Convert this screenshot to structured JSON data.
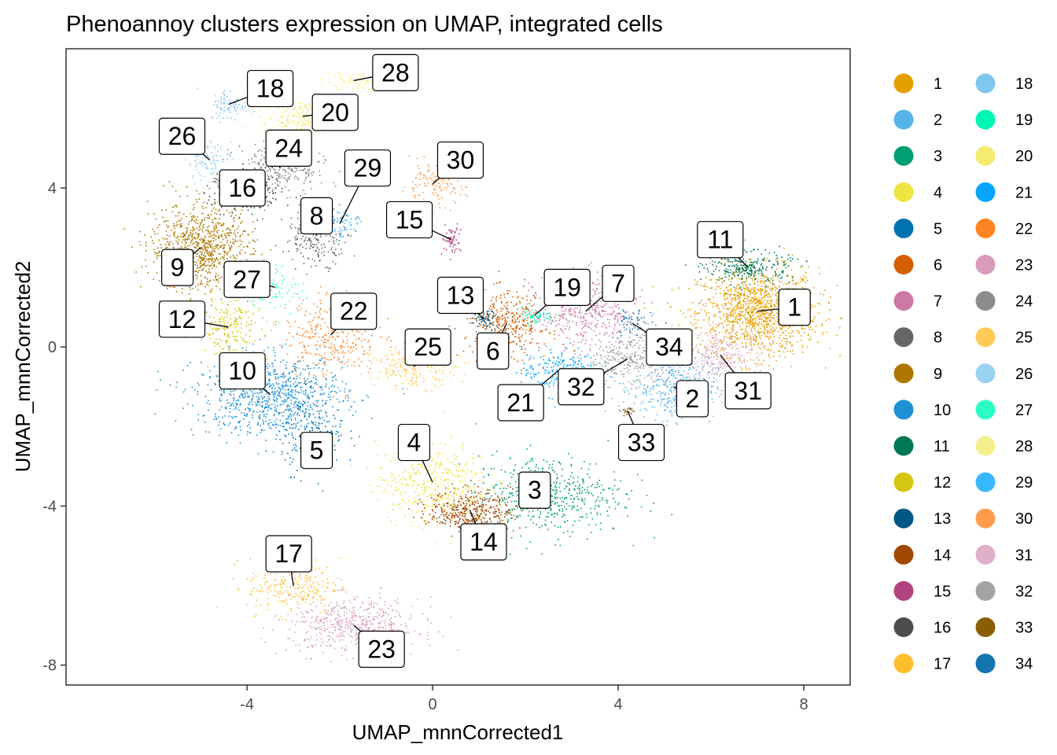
{
  "chart_data": {
    "type": "scatter",
    "title": "Phenoannoy clusters expression on UMAP, integrated cells",
    "xlabel": "UMAP_mnnCorrected1",
    "ylabel": "UMAP_mnnCorrected2",
    "xlim": [
      -7.9,
      9.0
    ],
    "ylim": [
      -8.5,
      7.5
    ],
    "xticks": [
      -4,
      0,
      4,
      8
    ],
    "yticks": [
      -8,
      -4,
      0,
      4
    ],
    "xtick_labels": [
      "-4",
      "0",
      "4",
      "8"
    ],
    "ytick_labels": [
      "-8",
      "-4",
      "0",
      "4"
    ],
    "grid": false,
    "legend_position": "right",
    "clusters": [
      {
        "id": 1,
        "label": "1",
        "color": "#E69F00",
        "center": [
          7.0,
          0.9
        ],
        "label_pos": [
          7.8,
          1.0
        ],
        "spread": [
          0.65,
          0.55
        ],
        "n": 1300
      },
      {
        "id": 2,
        "label": "2",
        "color": "#56B4E9",
        "center": [
          5.2,
          -1.0
        ],
        "label_pos": [
          5.6,
          -1.3
        ],
        "spread": [
          0.45,
          0.4
        ],
        "n": 380
      },
      {
        "id": 3,
        "label": "3",
        "color": "#009E73",
        "center": [
          2.5,
          -3.7
        ],
        "label_pos": [
          2.2,
          -3.6
        ],
        "spread": [
          0.8,
          0.5
        ],
        "n": 520
      },
      {
        "id": 4,
        "label": "4",
        "color": "#F0E442",
        "center": [
          0.0,
          -3.4
        ],
        "label_pos": [
          -0.4,
          -2.4
        ],
        "spread": [
          0.6,
          0.5
        ],
        "n": 420
      },
      {
        "id": 5,
        "label": "5",
        "color": "#0072B2",
        "center": [
          -2.6,
          -2.2
        ],
        "label_pos": [
          -2.5,
          -2.6
        ],
        "spread": [
          0.35,
          0.45
        ],
        "n": 180
      },
      {
        "id": 6,
        "label": "6",
        "color": "#D55E00",
        "center": [
          1.6,
          0.6
        ],
        "label_pos": [
          1.3,
          -0.1
        ],
        "spread": [
          0.45,
          0.4
        ],
        "n": 360
      },
      {
        "id": 7,
        "label": "7",
        "color": "#CC79A7",
        "center": [
          3.3,
          0.9
        ],
        "label_pos": [
          4.0,
          1.6
        ],
        "spread": [
          0.55,
          0.45
        ],
        "n": 420
      },
      {
        "id": 8,
        "label": "8",
        "color": "#666666",
        "center": [
          -2.5,
          2.8
        ],
        "label_pos": [
          -2.5,
          3.3
        ],
        "spread": [
          0.35,
          0.35
        ],
        "n": 220
      },
      {
        "id": 9,
        "label": "9",
        "color": "#AD7700",
        "center": [
          -5.0,
          2.5
        ],
        "label_pos": [
          -5.5,
          2.0
        ],
        "spread": [
          0.55,
          0.55
        ],
        "n": 900
      },
      {
        "id": 10,
        "label": "10",
        "color": "#1C91D4",
        "center": [
          -3.5,
          -1.2
        ],
        "label_pos": [
          -4.1,
          -0.6
        ],
        "spread": [
          0.8,
          0.5
        ],
        "n": 900
      },
      {
        "id": 11,
        "label": "11",
        "color": "#007756",
        "center": [
          6.8,
          2.0
        ],
        "label_pos": [
          6.2,
          2.7
        ],
        "spread": [
          0.45,
          0.2
        ],
        "n": 260
      },
      {
        "id": 12,
        "label": "12",
        "color": "#D5C711",
        "center": [
          -4.4,
          0.5
        ],
        "label_pos": [
          -5.4,
          0.7
        ],
        "spread": [
          0.35,
          0.35
        ],
        "n": 200
      },
      {
        "id": 13,
        "label": "13",
        "color": "#005685",
        "center": [
          1.1,
          0.7
        ],
        "label_pos": [
          0.6,
          1.3
        ],
        "spread": [
          0.15,
          0.12
        ],
        "n": 60
      },
      {
        "id": 14,
        "label": "14",
        "color": "#A04700",
        "center": [
          0.8,
          -4.1
        ],
        "label_pos": [
          1.1,
          -4.9
        ],
        "spread": [
          0.45,
          0.25
        ],
        "n": 380
      },
      {
        "id": 15,
        "label": "15",
        "color": "#B14380",
        "center": [
          0.4,
          2.7
        ],
        "label_pos": [
          -0.5,
          3.2
        ],
        "spread": [
          0.1,
          0.2
        ],
        "n": 60
      },
      {
        "id": 16,
        "label": "16",
        "color": "#4D4D4D",
        "center": [
          -4.0,
          3.9
        ],
        "label_pos": [
          -4.1,
          4.0
        ],
        "spread": [
          0.4,
          0.3
        ],
        "n": 220
      },
      {
        "id": 17,
        "label": "17",
        "color": "#FFBE2D",
        "center": [
          -3.0,
          -6.0
        ],
        "label_pos": [
          -3.1,
          -5.2
        ],
        "spread": [
          0.5,
          0.35
        ],
        "n": 240
      },
      {
        "id": 18,
        "label": "18",
        "color": "#80C7EF",
        "center": [
          -4.4,
          6.1
        ],
        "label_pos": [
          -3.5,
          6.5
        ],
        "spread": [
          0.2,
          0.2
        ],
        "n": 80
      },
      {
        "id": 19,
        "label": "19",
        "color": "#00F6B3",
        "center": [
          2.2,
          0.8
        ],
        "label_pos": [
          2.9,
          1.5
        ],
        "spread": [
          0.2,
          0.1
        ],
        "n": 60
      },
      {
        "id": 20,
        "label": "20",
        "color": "#F4EB71",
        "center": [
          -2.8,
          5.8
        ],
        "label_pos": [
          -2.1,
          5.9
        ],
        "spread": [
          0.45,
          0.2
        ],
        "n": 220
      },
      {
        "id": 21,
        "label": "21",
        "color": "#06A5FF",
        "center": [
          2.7,
          -0.6
        ],
        "label_pos": [
          1.9,
          -1.4
        ],
        "spread": [
          0.4,
          0.3
        ],
        "n": 240
      },
      {
        "id": 22,
        "label": "22",
        "color": "#FF8320",
        "center": [
          -2.2,
          0.3
        ],
        "label_pos": [
          -1.7,
          0.9
        ],
        "spread": [
          0.5,
          0.5
        ],
        "n": 320
      },
      {
        "id": 23,
        "label": "23",
        "color": "#D99BBD",
        "center": [
          -1.7,
          -7.0
        ],
        "label_pos": [
          -1.1,
          -7.6
        ],
        "spread": [
          0.7,
          0.35
        ],
        "n": 520
      },
      {
        "id": 24,
        "label": "24",
        "color": "#8C8C8C",
        "center": [
          -3.3,
          4.5
        ],
        "label_pos": [
          -3.1,
          5.0
        ],
        "spread": [
          0.5,
          0.3
        ],
        "n": 260
      },
      {
        "id": 25,
        "label": "25",
        "color": "#FFCB57",
        "center": [
          -0.4,
          -0.5
        ],
        "label_pos": [
          -0.1,
          0.0
        ],
        "spread": [
          0.45,
          0.25
        ],
        "n": 220
      },
      {
        "id": 26,
        "label": "26",
        "color": "#9AD2F2",
        "center": [
          -4.8,
          4.7
        ],
        "label_pos": [
          -5.4,
          5.3
        ],
        "spread": [
          0.25,
          0.25
        ],
        "n": 120
      },
      {
        "id": 27,
        "label": "27",
        "color": "#2CFFC6",
        "center": [
          -3.4,
          1.5
        ],
        "label_pos": [
          -4.0,
          1.7
        ],
        "spread": [
          0.3,
          0.3
        ],
        "n": 80
      },
      {
        "id": 28,
        "label": "28",
        "color": "#F6EF8E",
        "center": [
          -1.7,
          6.7
        ],
        "label_pos": [
          -0.8,
          6.9
        ],
        "spread": [
          0.3,
          0.12
        ],
        "n": 90
      },
      {
        "id": 29,
        "label": "29",
        "color": "#38B7FF",
        "center": [
          -2.0,
          3.1
        ],
        "label_pos": [
          -1.4,
          4.5
        ],
        "spread": [
          0.2,
          0.2
        ],
        "n": 60
      },
      {
        "id": 30,
        "label": "30",
        "color": "#FF9B4D",
        "center": [
          0.0,
          4.1
        ],
        "label_pos": [
          0.6,
          4.7
        ],
        "spread": [
          0.35,
          0.25
        ],
        "n": 140
      },
      {
        "id": 31,
        "label": "31",
        "color": "#E0AFCA",
        "center": [
          6.2,
          -0.2
        ],
        "label_pos": [
          6.8,
          -1.1
        ],
        "spread": [
          0.5,
          0.35
        ],
        "n": 320
      },
      {
        "id": 32,
        "label": "32",
        "color": "#A3A3A3",
        "center": [
          4.2,
          -0.3
        ],
        "label_pos": [
          3.2,
          -1.0
        ],
        "spread": [
          0.45,
          0.35
        ],
        "n": 320
      },
      {
        "id": 33,
        "label": "33",
        "color": "#8A5D00",
        "center": [
          4.2,
          -1.6
        ],
        "label_pos": [
          4.5,
          -2.4
        ],
        "spread": [
          0.08,
          0.08
        ],
        "n": 20
      },
      {
        "id": 34,
        "label": "34",
        "color": "#1674B1",
        "center": [
          4.3,
          0.6
        ],
        "label_pos": [
          5.1,
          0.0
        ],
        "spread": [
          0.2,
          0.2
        ],
        "n": 60
      }
    ]
  }
}
